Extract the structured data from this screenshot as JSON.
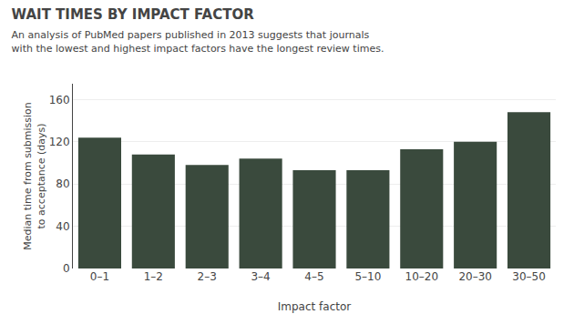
{
  "chart_data": {
    "type": "bar",
    "title": "WAIT TIMES BY IMPACT FACTOR",
    "subtitle": "An analysis of PubMed papers published in 2013 suggests that journals\nwith the lowest and highest impact factors have the longest review times.",
    "xlabel": "Impact factor",
    "ylabel": "Median time from submission\nto acceptance (days)",
    "categories": [
      "0–1",
      "1–2",
      "2–3",
      "3–4",
      "4–5",
      "5–10",
      "10–20",
      "20–30",
      "30–50"
    ],
    "values": [
      124,
      108,
      98,
      104,
      93,
      93,
      113,
      120,
      148
    ],
    "color": "#3a4a3d",
    "ylim": [
      0,
      175
    ],
    "yticks": [
      0,
      40,
      80,
      120,
      160
    ],
    "grid": true
  }
}
